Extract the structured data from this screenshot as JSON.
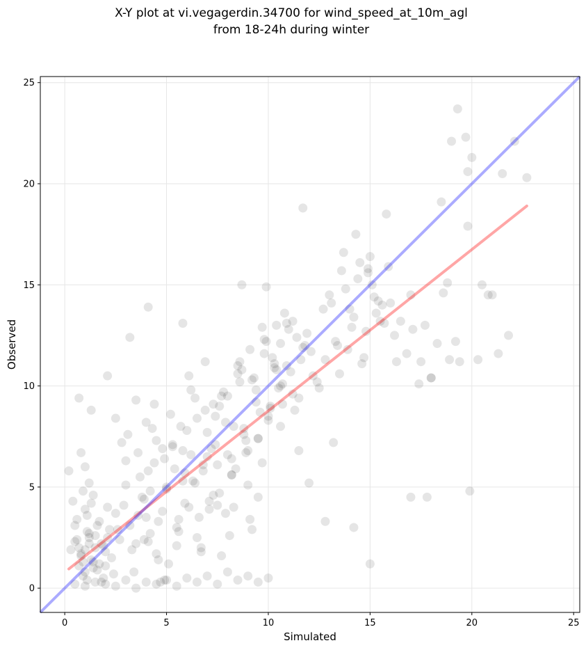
{
  "chart_data": {
    "type": "scatter",
    "title": [
      "X-Y plot at vi.vegagerdin.34700 for wind_speed_at_10m_agl",
      "from 18-24h during winter"
    ],
    "xlabel": "Simulated",
    "ylabel": "Observed",
    "xlim": [
      -1.2,
      25.3
    ],
    "ylim": [
      -1.2,
      25.3
    ],
    "xticks": [
      0,
      5,
      10,
      15,
      20,
      25
    ],
    "yticks": [
      0,
      5,
      10,
      15,
      20,
      25
    ],
    "grid": true,
    "colors": {
      "points": "#000000",
      "identity_line": "#0000ff",
      "regression_line": "#ff0000"
    },
    "identity_line": {
      "x": [
        -1.2,
        25.3
      ],
      "y": [
        -1.2,
        25.3
      ]
    },
    "regression_line": {
      "x": [
        0.2,
        22.7
      ],
      "y": [
        0.95,
        18.9
      ]
    },
    "scatter": {
      "x": [
        0.2,
        0.4,
        0.5,
        0.6,
        0.7,
        0.8,
        0.9,
        1.0,
        1.1,
        1.2,
        0.3,
        0.5,
        0.7,
        0.9,
        1.1,
        1.3,
        1.5,
        1.7,
        1.9,
        2.1,
        0.6,
        0.8,
        1.0,
        1.2,
        1.4,
        1.6,
        1.8,
        2.0,
        2.2,
        2.4,
        0.9,
        1.1,
        1.3,
        1.5,
        1.7,
        1.9,
        2.1,
        2.3,
        2.5,
        2.7,
        1.0,
        1.2,
        1.4,
        1.6,
        1.8,
        2.0,
        0.8,
        1.0,
        1.2,
        1.4,
        2.5,
        2.8,
        3.0,
        3.2,
        3.5,
        3.7,
        4.0,
        4.2,
        4.5,
        4.8,
        2.6,
        2.9,
        3.1,
        3.4,
        3.6,
        3.9,
        4.1,
        4.4,
        4.6,
        4.9,
        3.0,
        3.3,
        3.6,
        3.9,
        4.2,
        4.5,
        4.8,
        5.1,
        5.4,
        5.7,
        3.5,
        3.8,
        4.1,
        4.4,
        4.7,
        5.0,
        5.3,
        5.6,
        5.9,
        6.2,
        4.0,
        4.3,
        4.6,
        4.9,
        5.2,
        5.5,
        5.8,
        6.1,
        6.4,
        6.7,
        5.0,
        5.3,
        5.6,
        5.9,
        6.2,
        6.5,
        6.8,
        7.1,
        7.4,
        7.7,
        5.5,
        5.8,
        6.1,
        6.4,
        6.7,
        7.0,
        7.3,
        7.6,
        7.9,
        8.2,
        6.0,
        6.3,
        6.6,
        6.9,
        7.2,
        7.5,
        7.8,
        8.1,
        8.4,
        8.7,
        6.5,
        6.8,
        7.1,
        7.4,
        7.7,
        8.0,
        8.3,
        8.6,
        8.9,
        9.2,
        7.0,
        7.3,
        7.6,
        7.9,
        8.2,
        8.5,
        8.8,
        9.1,
        9.4,
        9.7,
        8.0,
        8.3,
        8.6,
        8.9,
        9.2,
        9.5,
        9.8,
        10.1,
        10.4,
        10.7,
        8.5,
        8.8,
        9.1,
        9.4,
        9.7,
        10.0,
        10.3,
        10.6,
        10.9,
        11.2,
        9.0,
        9.3,
        9.6,
        9.9,
        10.2,
        10.5,
        10.8,
        11.1,
        11.4,
        11.7,
        9.5,
        9.8,
        10.1,
        10.4,
        10.7,
        11.0,
        11.3,
        11.6,
        11.9,
        12.2,
        10.0,
        10.3,
        10.6,
        10.9,
        11.2,
        11.5,
        11.8,
        12.1,
        12.4,
        12.7,
        13.0,
        13.3,
        13.6,
        13.9,
        14.2,
        14.5,
        14.8,
        15.1,
        15.4,
        15.7,
        13.5,
        13.8,
        14.1,
        14.4,
        14.7,
        15.0,
        15.3,
        15.6,
        15.9,
        16.2,
        12.5,
        12.8,
        13.1,
        13.4,
        13.7,
        14.0,
        14.3,
        14.6,
        14.9,
        15.2,
        16.5,
        16.8,
        17.1,
        17.4,
        17.7,
        18.0,
        18.3,
        18.6,
        18.9,
        19.2,
        0.5,
        1.0,
        1.5,
        2.0,
        2.5,
        3.0,
        3.5,
        4.0,
        4.5,
        5.0,
        5.5,
        6.0,
        6.5,
        7.0,
        7.5,
        8.0,
        8.5,
        9.0,
        9.5,
        10.0,
        4.1,
        5.8,
        8.7,
        11.7,
        9.9,
        3.2,
        2.1,
        1.3,
        0.7,
        6.9,
        19.0,
        19.3,
        19.7,
        19.8,
        20.0,
        20.5,
        21.0,
        21.5,
        21.8,
        22.1,
        22.7,
        20.3,
        20.8,
        21.3,
        19.4,
        19.9,
        17.0,
        17.5,
        18.0,
        18.5,
        14.9,
        15.0,
        15.5,
        16.0,
        16.3,
        13.2,
        12.8,
        11.5,
        10.6,
        9.5,
        9.0,
        8.2,
        7.5,
        17.0,
        17.8,
        19.8,
        18.8,
        14.2,
        12.0,
        15.8
      ],
      "y": [
        5.8,
        4.3,
        3.1,
        2.4,
        2.0,
        1.6,
        1.3,
        0.8,
        0.4,
        2.7,
        1.9,
        2.3,
        1.1,
        0.6,
        2.8,
        1.4,
        2.0,
        1.2,
        0.5,
        2.5,
        3.4,
        1.7,
        3.9,
        2.2,
        1.0,
        3.1,
        0.3,
        1.8,
        2.9,
        0.7,
        4.8,
        3.6,
        4.2,
        2.6,
        3.3,
        2.1,
        4.0,
        1.5,
        3.7,
        2.4,
        1.9,
        2.5,
        1.3,
        0.9,
        2.2,
        1.1,
        6.7,
        6.0,
        5.2,
        4.6,
        8.4,
        7.2,
        6.3,
        3.1,
        2.2,
        5.5,
        8.2,
        4.8,
        1.7,
        6.9,
        2.9,
        4.1,
        7.6,
        0.8,
        3.6,
        2.4,
        5.8,
        9.1,
        3.3,
        0.4,
        5.1,
        1.9,
        6.7,
        4.4,
        2.7,
        7.3,
        3.8,
        1.2,
        5.9,
        8.0,
        9.3,
        4.5,
        2.3,
        6.2,
        0.3,
        5.0,
        7.1,
        2.8,
        4.2,
        6.6,
        3.5,
        7.9,
        1.4,
        6.4,
        8.6,
        2.1,
        5.3,
        4.0,
        9.4,
        1.8,
        4.9,
        7.0,
        3.4,
        5.7,
        9.8,
        2.5,
        6.1,
        4.3,
        8.5,
        1.6,
        3.0,
        6.8,
        10.5,
        5.2,
        2.0,
        7.7,
        4.6,
        9.0,
        3.7,
        6.4,
        7.8,
        5.3,
        3.5,
        8.8,
        6.9,
        4.1,
        9.7,
        2.6,
        5.9,
        10.8,
        8.4,
        5.8,
        3.9,
        7.1,
        9.5,
        6.6,
        4.0,
        10.2,
        7.3,
        2.9,
        6.5,
        9.1,
        4.7,
        8.2,
        5.6,
        11.0,
        7.6,
        3.4,
        9.8,
        6.2,
        9.5,
        8.0,
        11.2,
        6.7,
        10.3,
        7.4,
        12.3,
        8.9,
        10.8,
        9.1,
        10.6,
        7.9,
        11.8,
        9.2,
        12.9,
        8.5,
        11.1,
        10.0,
        13.1,
        9.6,
        6.8,
        10.4,
        8.7,
        12.2,
        11.4,
        9.9,
        13.6,
        10.7,
        12.4,
        11.9,
        7.4,
        11.6,
        9.0,
        13.0,
        10.1,
        12.8,
        8.8,
        11.3,
        12.6,
        10.5,
        8.3,
        10.9,
        12.1,
        11.0,
        13.2,
        9.4,
        12.0,
        11.7,
        10.2,
        13.8,
        14.5,
        12.2,
        15.7,
        11.8,
        13.4,
        16.1,
        12.7,
        15.0,
        14.2,
        13.1,
        10.6,
        14.8,
        12.9,
        15.3,
        11.4,
        16.4,
        13.6,
        14.0,
        15.9,
        12.5,
        9.9,
        11.3,
        14.1,
        12.0,
        16.6,
        13.8,
        17.5,
        11.1,
        15.6,
        14.4,
        13.2,
        11.6,
        12.8,
        10.1,
        13.0,
        10.4,
        12.1,
        14.6,
        11.3,
        12.2,
        0.2,
        0.1,
        0.3,
        0.2,
        0.1,
        0.4,
        0.0,
        0.3,
        0.2,
        0.4,
        0.1,
        0.5,
        0.3,
        0.6,
        0.2,
        0.8,
        0.4,
        0.6,
        0.3,
        0.5,
        13.9,
        13.1,
        15.0,
        18.8,
        14.9,
        12.4,
        10.5,
        8.8,
        9.4,
        11.2,
        22.1,
        23.7,
        22.3,
        20.6,
        21.3,
        15.0,
        14.5,
        20.5,
        12.5,
        22.1,
        20.3,
        11.3,
        14.5,
        11.6,
        11.2,
        4.8,
        14.5,
        11.2,
        10.4,
        19.1,
        15.8,
        1.2,
        13.2,
        14.1,
        11.2,
        7.2,
        3.3,
        6.8,
        8.0,
        4.5,
        5.1,
        5.6,
        6.1,
        4.5,
        4.5,
        17.9,
        15.1,
        3.0,
        5.2,
        18.5
      ]
    }
  }
}
